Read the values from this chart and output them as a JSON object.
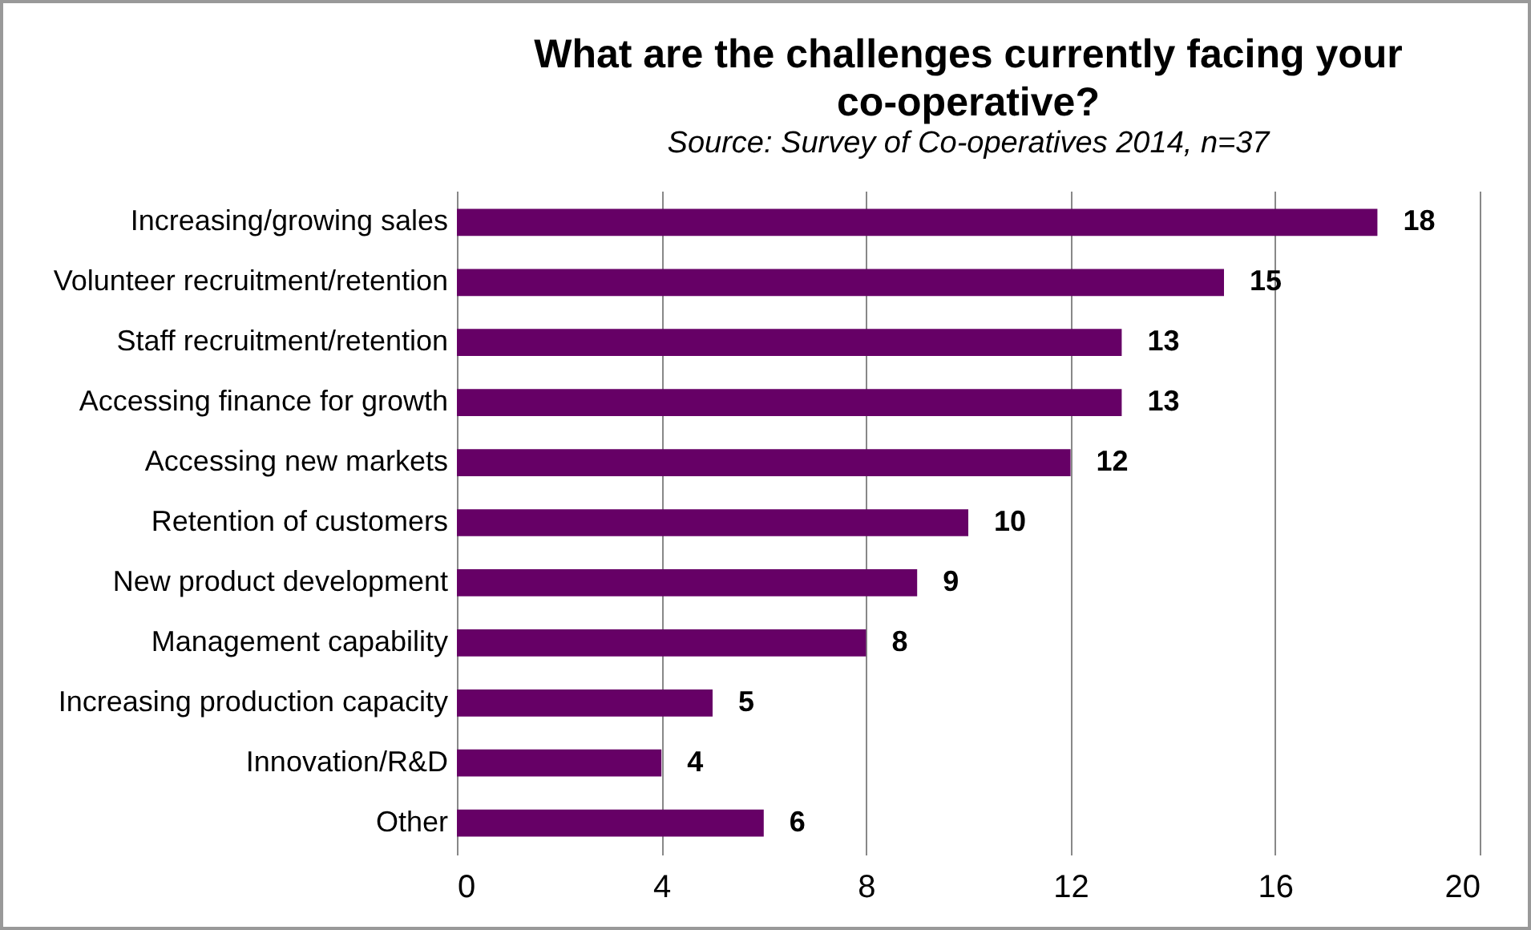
{
  "chart_data": {
    "type": "bar",
    "orientation": "horizontal",
    "title": "What are the challenges currently facing your co-operative?",
    "subtitle": "Source: Survey of Co-operatives 2014, n=37",
    "categories": [
      "Increasing/growing sales",
      "Volunteer recruitment/retention",
      "Staff recruitment/retention",
      "Accessing finance for growth",
      "Accessing new markets",
      "Retention of customers",
      "New product development",
      "Management capability",
      "Increasing production capacity",
      "Innovation/R&D",
      "Other"
    ],
    "values": [
      18,
      15,
      13,
      13,
      12,
      10,
      9,
      8,
      5,
      4,
      6
    ],
    "color": "#660066",
    "xlim": [
      0,
      20
    ],
    "xticks": [
      0,
      4,
      8,
      12,
      16,
      20
    ],
    "grid": "x",
    "data_labels": true
  }
}
